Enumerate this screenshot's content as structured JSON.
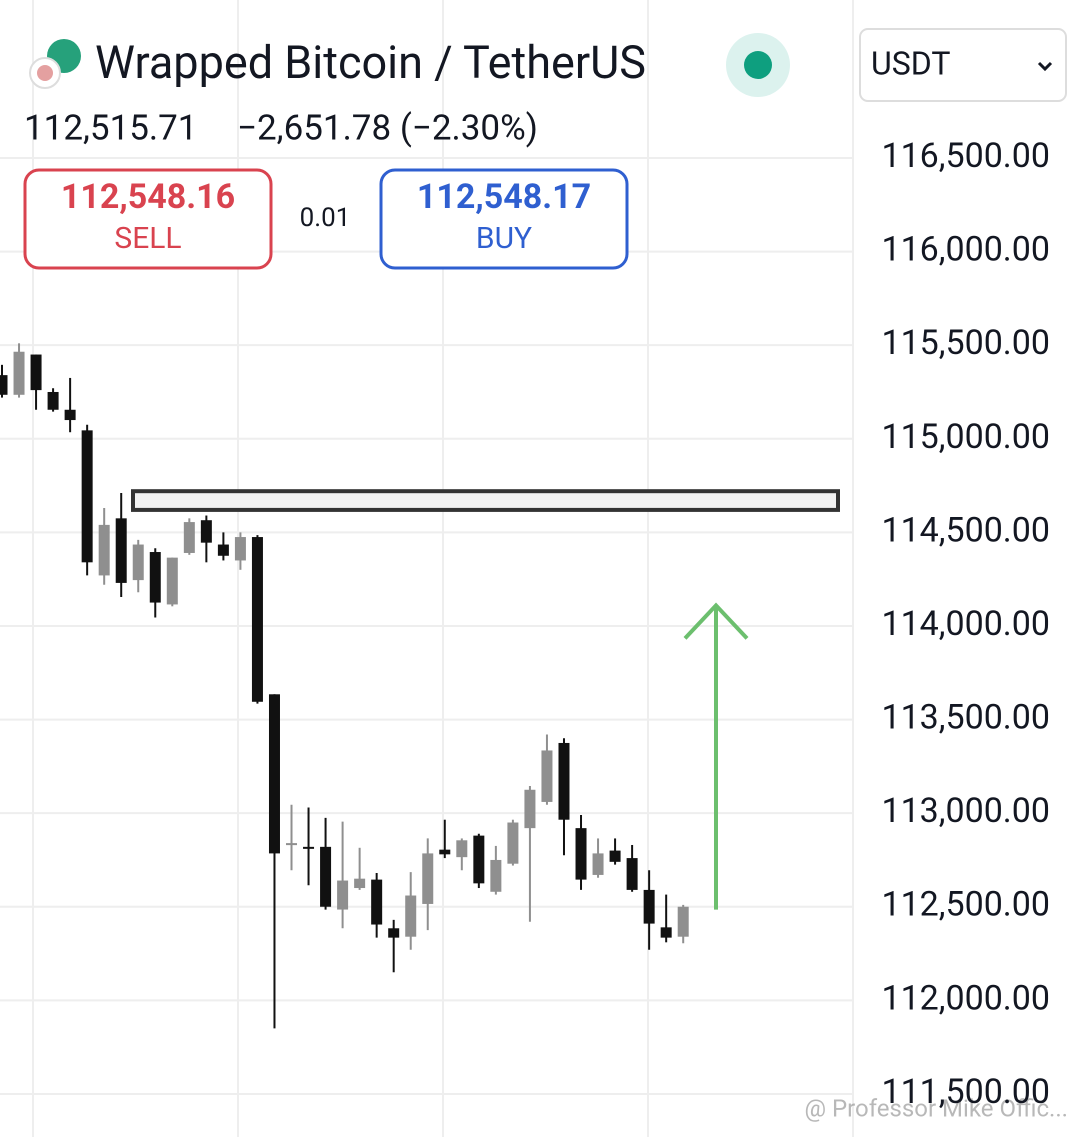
{
  "chart_data": {
    "type": "candlestick",
    "title": "Wrapped Bitcoin / TetherUS",
    "open": [
      115340,
      115235,
      115450,
      115250,
      115155,
      115045,
      114270,
      114575,
      114245,
      114395,
      114115,
      114390,
      114565,
      114435,
      114350,
      114475,
      113635,
      112830,
      112820,
      112820,
      112485,
      112600,
      112645,
      112385,
      112340,
      112515,
      112805,
      112765,
      112880,
      112580,
      112730,
      112920,
      113060,
      113375,
      112920,
      112670,
      112800,
      112760,
      112590,
      112390,
      112340
    ],
    "high": [
      115395,
      115510,
      115450,
      115270,
      115325,
      115075,
      114630,
      114710,
      114460,
      114415,
      114365,
      114575,
      114590,
      114500,
      114500,
      114485,
      113635,
      113045,
      113030,
      112975,
      112955,
      112815,
      112680,
      112430,
      112685,
      112865,
      112965,
      112865,
      112890,
      112825,
      112965,
      113145,
      113420,
      113400,
      112990,
      112865,
      112865,
      112830,
      112695,
      112565,
      112510
    ],
    "low": [
      115220,
      115220,
      115155,
      115145,
      115035,
      114270,
      114220,
      114155,
      114180,
      114045,
      114105,
      114380,
      114340,
      114350,
      114300,
      113585,
      111850,
      112695,
      112615,
      112485,
      112385,
      112590,
      112335,
      112150,
      112270,
      112375,
      112760,
      112695,
      112600,
      112565,
      112720,
      112420,
      113045,
      112775,
      112590,
      112655,
      112725,
      112580,
      112270,
      112310,
      112305
    ],
    "close": [
      115235,
      115465,
      115260,
      115155,
      115100,
      114340,
      114540,
      114230,
      114435,
      114125,
      114365,
      114555,
      114445,
      114375,
      114475,
      113595,
      112785,
      112840,
      112810,
      112500,
      112640,
      112650,
      112405,
      112335,
      112560,
      112785,
      112780,
      112855,
      112625,
      112750,
      112950,
      113125,
      113335,
      112965,
      112645,
      112785,
      112740,
      112590,
      112410,
      112335,
      112500
    ],
    "up_color": "#8f8f8f",
    "down_color": "#111111",
    "zone": [
      114620,
      114720
    ],
    "zone_color": "#333333",
    "arrow": [
      112485,
      114110
    ],
    "arrow_color": "#6cbf6e",
    "ylim": [
      111270,
      117344
    ],
    "yticks": [
      {
        "value": 111500,
        "label": "111,500.00"
      },
      {
        "value": 112000,
        "label": "112,000.00"
      },
      {
        "value": 112500,
        "label": "112,500.00"
      },
      {
        "value": 113000,
        "label": "113,000.00"
      },
      {
        "value": 113500,
        "label": "113,500.00"
      },
      {
        "value": 114000,
        "label": "114,000.00"
      },
      {
        "value": 114500,
        "label": "114,500.00"
      },
      {
        "value": 115000,
        "label": "115,000.00"
      },
      {
        "value": 115500,
        "label": "115,500.00"
      },
      {
        "value": 116000,
        "label": "116,000.00"
      },
      {
        "value": 116500,
        "label": "116,500.00"
      }
    ],
    "grid": true
  },
  "header": {
    "last_price": "112,515.71",
    "change": "−2,651.78 (−2.30%)",
    "sell_price": "112,548.16",
    "sell_label": "SELL",
    "spread": "0.01",
    "buy_price": "112,548.17",
    "buy_label": "BUY",
    "currency": "USDT"
  },
  "watermark": "@ Professor Mike Offic..."
}
